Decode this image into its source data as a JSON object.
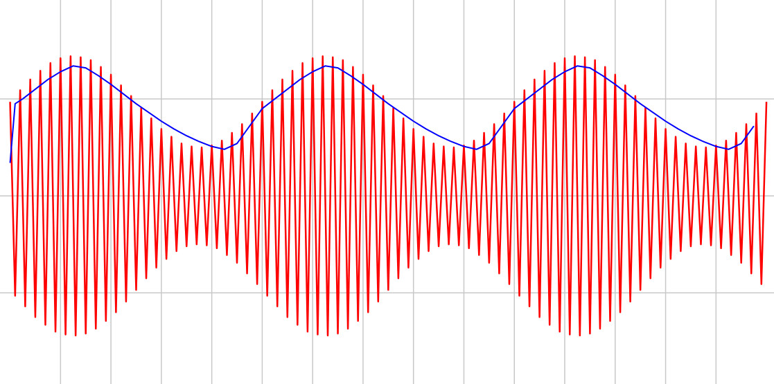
{
  "chart_data": {
    "type": "line",
    "grid": true,
    "grid_color": "#c8c8c8",
    "xlim": [
      -0.2,
      15.15
    ],
    "xticks": [
      1,
      2,
      3,
      4,
      5,
      6,
      7,
      8,
      9,
      10,
      11,
      12,
      13,
      14
    ],
    "ylim": [
      -1.94,
      2.02
    ],
    "yticks": [
      -1,
      0,
      1
    ],
    "series": [
      {
        "color": "#ff0000",
        "x": [
          0,
          0.1,
          0.2,
          0.3,
          0.4,
          0.5,
          0.6,
          0.7,
          0.8,
          0.9,
          1,
          1.1,
          1.2,
          1.3,
          1.4,
          1.5,
          1.6,
          1.7,
          1.8,
          1.9,
          2,
          2.1,
          2.2,
          2.3,
          2.4,
          2.5,
          2.6,
          2.7,
          2.8,
          2.9,
          3,
          3.1,
          3.2,
          3.3,
          3.4,
          3.5,
          3.6,
          3.7,
          3.8,
          3.9,
          4,
          4.1,
          4.2,
          4.3,
          4.4,
          4.5,
          4.6,
          4.7,
          4.8,
          4.9,
          5,
          5.1,
          5.2,
          5.3,
          5.4,
          5.5,
          5.6,
          5.7,
          5.8,
          5.9,
          6,
          6.1,
          6.2,
          6.3,
          6.4,
          6.5,
          6.6,
          6.7,
          6.8,
          6.9,
          7,
          7.1,
          7.2,
          7.3,
          7.4,
          7.5,
          7.6,
          7.7,
          7.8,
          7.9,
          8,
          8.1,
          8.2,
          8.3,
          8.4,
          8.5,
          8.6,
          8.7,
          8.8,
          8.9,
          9,
          9.1,
          9.2,
          9.3,
          9.4,
          9.5,
          9.6,
          9.7,
          9.8,
          9.9,
          10,
          10.1,
          10.2,
          10.3,
          10.4,
          10.5,
          10.6,
          10.7,
          10.8,
          10.9,
          11,
          11.1,
          11.2,
          11.3,
          11.4,
          11.5,
          11.6,
          11.7,
          11.8,
          11.9,
          12,
          12.1,
          12.2,
          12.3,
          12.4,
          12.5,
          12.6,
          12.7,
          12.8,
          12.9,
          13,
          13.1,
          13.2,
          13.3,
          13.4,
          13.5,
          13.6,
          13.7,
          13.8,
          13.9,
          14,
          14.1,
          14.2,
          14.3,
          14.4,
          14.5,
          14.6,
          14.7,
          14.8,
          14.9,
          15
        ],
        "values": [
          0.97,
          -1.03,
          1.09,
          -1.14,
          1.2,
          -1.25,
          1.29,
          -1.33,
          1.37,
          -1.4,
          1.42,
          -1.43,
          1.44,
          -1.44,
          1.43,
          -1.42,
          1.4,
          -1.37,
          1.33,
          -1.29,
          1.25,
          -1.2,
          1.14,
          -1.09,
          1.03,
          -0.97,
          0.91,
          -0.85,
          0.8,
          -0.74,
          0.69,
          -0.65,
          0.61,
          -0.57,
          0.54,
          -0.52,
          0.51,
          -0.5,
          0.5,
          -0.51,
          0.52,
          -0.54,
          0.57,
          -0.61,
          0.65,
          -0.69,
          0.74,
          -0.8,
          0.85,
          -0.91,
          0.97,
          -1.03,
          1.09,
          -1.14,
          1.2,
          -1.25,
          1.29,
          -1.33,
          1.37,
          -1.4,
          1.42,
          -1.43,
          1.44,
          -1.44,
          1.43,
          -1.42,
          1.4,
          -1.37,
          1.33,
          -1.29,
          1.25,
          -1.2,
          1.14,
          -1.09,
          1.03,
          -0.97,
          0.91,
          -0.85,
          0.8,
          -0.74,
          0.69,
          -0.65,
          0.61,
          -0.57,
          0.54,
          -0.52,
          0.51,
          -0.5,
          0.5,
          -0.51,
          0.52,
          -0.54,
          0.57,
          -0.61,
          0.65,
          -0.69,
          0.74,
          -0.8,
          0.85,
          -0.91,
          0.97,
          -1.03,
          1.09,
          -1.14,
          1.2,
          -1.25,
          1.29,
          -1.33,
          1.37,
          -1.4,
          1.42,
          -1.43,
          1.44,
          -1.44,
          1.43,
          -1.42,
          1.4,
          -1.37,
          1.33,
          -1.29,
          1.25,
          -1.2,
          1.14,
          -1.09,
          1.03,
          -0.97,
          0.91,
          -0.85,
          0.8,
          -0.74,
          0.69,
          -0.65,
          0.61,
          -0.57,
          0.54,
          -0.52,
          0.51,
          -0.5,
          0.5,
          -0.51,
          0.52,
          -0.54,
          0.57,
          -0.61,
          0.65,
          -0.69,
          0.74,
          -0.8,
          0.85,
          -0.91,
          0.97
        ]
      },
      {
        "color": "#0000ff",
        "x": [
          0,
          0.1,
          0.25,
          0.5,
          0.75,
          1,
          1.25,
          1.5,
          1.75,
          2,
          2.25,
          2.5,
          2.75,
          3,
          3.25,
          3.5,
          3.75,
          4,
          4.25,
          4.5,
          4.75,
          5,
          5.25,
          5.5,
          5.75,
          6,
          6.25,
          6.5,
          6.75,
          7,
          7.25,
          7.5,
          7.75,
          8,
          8.25,
          8.5,
          8.75,
          9,
          9.25,
          9.5,
          9.75,
          10,
          10.25,
          10.5,
          10.75,
          11,
          11.25,
          11.5,
          11.75,
          12,
          12.25,
          12.5,
          12.75,
          13,
          13.25,
          13.5,
          13.75,
          14,
          14.25,
          14.5,
          14.75
        ],
        "values": [
          0.34,
          0.95,
          1,
          1.1,
          1.2,
          1.28,
          1.34,
          1.32,
          1.24,
          1.15,
          1.05,
          0.95,
          0.86,
          0.77,
          0.69,
          0.62,
          0.56,
          0.51,
          0.48,
          0.54,
          0.72,
          0.9,
          1,
          1.1,
          1.2,
          1.28,
          1.34,
          1.32,
          1.24,
          1.15,
          1.05,
          0.95,
          0.86,
          0.77,
          0.69,
          0.62,
          0.56,
          0.51,
          0.48,
          0.54,
          0.72,
          0.9,
          1,
          1.1,
          1.2,
          1.28,
          1.34,
          1.32,
          1.24,
          1.15,
          1.05,
          0.95,
          0.86,
          0.77,
          0.69,
          0.62,
          0.56,
          0.51,
          0.48,
          0.54,
          0.72
        ]
      }
    ]
  }
}
